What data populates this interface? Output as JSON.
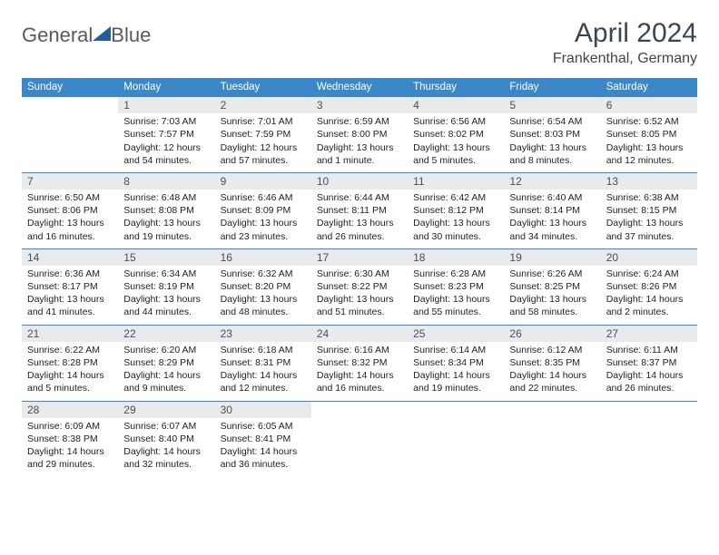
{
  "brand": {
    "part1": "General",
    "part2": "Blue"
  },
  "title": "April 2024",
  "location": "Frankenthal, Germany",
  "colors": {
    "header_bg": "#3b87c8",
    "header_text": "#ffffff",
    "border": "#3b87c8",
    "daynum_bg": "#e9eaec",
    "logo_triangle": "#1f5f9e"
  },
  "day_headers": [
    "Sunday",
    "Monday",
    "Tuesday",
    "Wednesday",
    "Thursday",
    "Friday",
    "Saturday"
  ],
  "weeks": [
    [
      {
        "n": "",
        "sr": "",
        "ss": "",
        "dl": ""
      },
      {
        "n": "1",
        "sr": "Sunrise: 7:03 AM",
        "ss": "Sunset: 7:57 PM",
        "dl": "Daylight: 12 hours and 54 minutes."
      },
      {
        "n": "2",
        "sr": "Sunrise: 7:01 AM",
        "ss": "Sunset: 7:59 PM",
        "dl": "Daylight: 12 hours and 57 minutes."
      },
      {
        "n": "3",
        "sr": "Sunrise: 6:59 AM",
        "ss": "Sunset: 8:00 PM",
        "dl": "Daylight: 13 hours and 1 minute."
      },
      {
        "n": "4",
        "sr": "Sunrise: 6:56 AM",
        "ss": "Sunset: 8:02 PM",
        "dl": "Daylight: 13 hours and 5 minutes."
      },
      {
        "n": "5",
        "sr": "Sunrise: 6:54 AM",
        "ss": "Sunset: 8:03 PM",
        "dl": "Daylight: 13 hours and 8 minutes."
      },
      {
        "n": "6",
        "sr": "Sunrise: 6:52 AM",
        "ss": "Sunset: 8:05 PM",
        "dl": "Daylight: 13 hours and 12 minutes."
      }
    ],
    [
      {
        "n": "7",
        "sr": "Sunrise: 6:50 AM",
        "ss": "Sunset: 8:06 PM",
        "dl": "Daylight: 13 hours and 16 minutes."
      },
      {
        "n": "8",
        "sr": "Sunrise: 6:48 AM",
        "ss": "Sunset: 8:08 PM",
        "dl": "Daylight: 13 hours and 19 minutes."
      },
      {
        "n": "9",
        "sr": "Sunrise: 6:46 AM",
        "ss": "Sunset: 8:09 PM",
        "dl": "Daylight: 13 hours and 23 minutes."
      },
      {
        "n": "10",
        "sr": "Sunrise: 6:44 AM",
        "ss": "Sunset: 8:11 PM",
        "dl": "Daylight: 13 hours and 26 minutes."
      },
      {
        "n": "11",
        "sr": "Sunrise: 6:42 AM",
        "ss": "Sunset: 8:12 PM",
        "dl": "Daylight: 13 hours and 30 minutes."
      },
      {
        "n": "12",
        "sr": "Sunrise: 6:40 AM",
        "ss": "Sunset: 8:14 PM",
        "dl": "Daylight: 13 hours and 34 minutes."
      },
      {
        "n": "13",
        "sr": "Sunrise: 6:38 AM",
        "ss": "Sunset: 8:15 PM",
        "dl": "Daylight: 13 hours and 37 minutes."
      }
    ],
    [
      {
        "n": "14",
        "sr": "Sunrise: 6:36 AM",
        "ss": "Sunset: 8:17 PM",
        "dl": "Daylight: 13 hours and 41 minutes."
      },
      {
        "n": "15",
        "sr": "Sunrise: 6:34 AM",
        "ss": "Sunset: 8:19 PM",
        "dl": "Daylight: 13 hours and 44 minutes."
      },
      {
        "n": "16",
        "sr": "Sunrise: 6:32 AM",
        "ss": "Sunset: 8:20 PM",
        "dl": "Daylight: 13 hours and 48 minutes."
      },
      {
        "n": "17",
        "sr": "Sunrise: 6:30 AM",
        "ss": "Sunset: 8:22 PM",
        "dl": "Daylight: 13 hours and 51 minutes."
      },
      {
        "n": "18",
        "sr": "Sunrise: 6:28 AM",
        "ss": "Sunset: 8:23 PM",
        "dl": "Daylight: 13 hours and 55 minutes."
      },
      {
        "n": "19",
        "sr": "Sunrise: 6:26 AM",
        "ss": "Sunset: 8:25 PM",
        "dl": "Daylight: 13 hours and 58 minutes."
      },
      {
        "n": "20",
        "sr": "Sunrise: 6:24 AM",
        "ss": "Sunset: 8:26 PM",
        "dl": "Daylight: 14 hours and 2 minutes."
      }
    ],
    [
      {
        "n": "21",
        "sr": "Sunrise: 6:22 AM",
        "ss": "Sunset: 8:28 PM",
        "dl": "Daylight: 14 hours and 5 minutes."
      },
      {
        "n": "22",
        "sr": "Sunrise: 6:20 AM",
        "ss": "Sunset: 8:29 PM",
        "dl": "Daylight: 14 hours and 9 minutes."
      },
      {
        "n": "23",
        "sr": "Sunrise: 6:18 AM",
        "ss": "Sunset: 8:31 PM",
        "dl": "Daylight: 14 hours and 12 minutes."
      },
      {
        "n": "24",
        "sr": "Sunrise: 6:16 AM",
        "ss": "Sunset: 8:32 PM",
        "dl": "Daylight: 14 hours and 16 minutes."
      },
      {
        "n": "25",
        "sr": "Sunrise: 6:14 AM",
        "ss": "Sunset: 8:34 PM",
        "dl": "Daylight: 14 hours and 19 minutes."
      },
      {
        "n": "26",
        "sr": "Sunrise: 6:12 AM",
        "ss": "Sunset: 8:35 PM",
        "dl": "Daylight: 14 hours and 22 minutes."
      },
      {
        "n": "27",
        "sr": "Sunrise: 6:11 AM",
        "ss": "Sunset: 8:37 PM",
        "dl": "Daylight: 14 hours and 26 minutes."
      }
    ],
    [
      {
        "n": "28",
        "sr": "Sunrise: 6:09 AM",
        "ss": "Sunset: 8:38 PM",
        "dl": "Daylight: 14 hours and 29 minutes."
      },
      {
        "n": "29",
        "sr": "Sunrise: 6:07 AM",
        "ss": "Sunset: 8:40 PM",
        "dl": "Daylight: 14 hours and 32 minutes."
      },
      {
        "n": "30",
        "sr": "Sunrise: 6:05 AM",
        "ss": "Sunset: 8:41 PM",
        "dl": "Daylight: 14 hours and 36 minutes."
      },
      {
        "n": "",
        "sr": "",
        "ss": "",
        "dl": ""
      },
      {
        "n": "",
        "sr": "",
        "ss": "",
        "dl": ""
      },
      {
        "n": "",
        "sr": "",
        "ss": "",
        "dl": ""
      },
      {
        "n": "",
        "sr": "",
        "ss": "",
        "dl": ""
      }
    ]
  ]
}
